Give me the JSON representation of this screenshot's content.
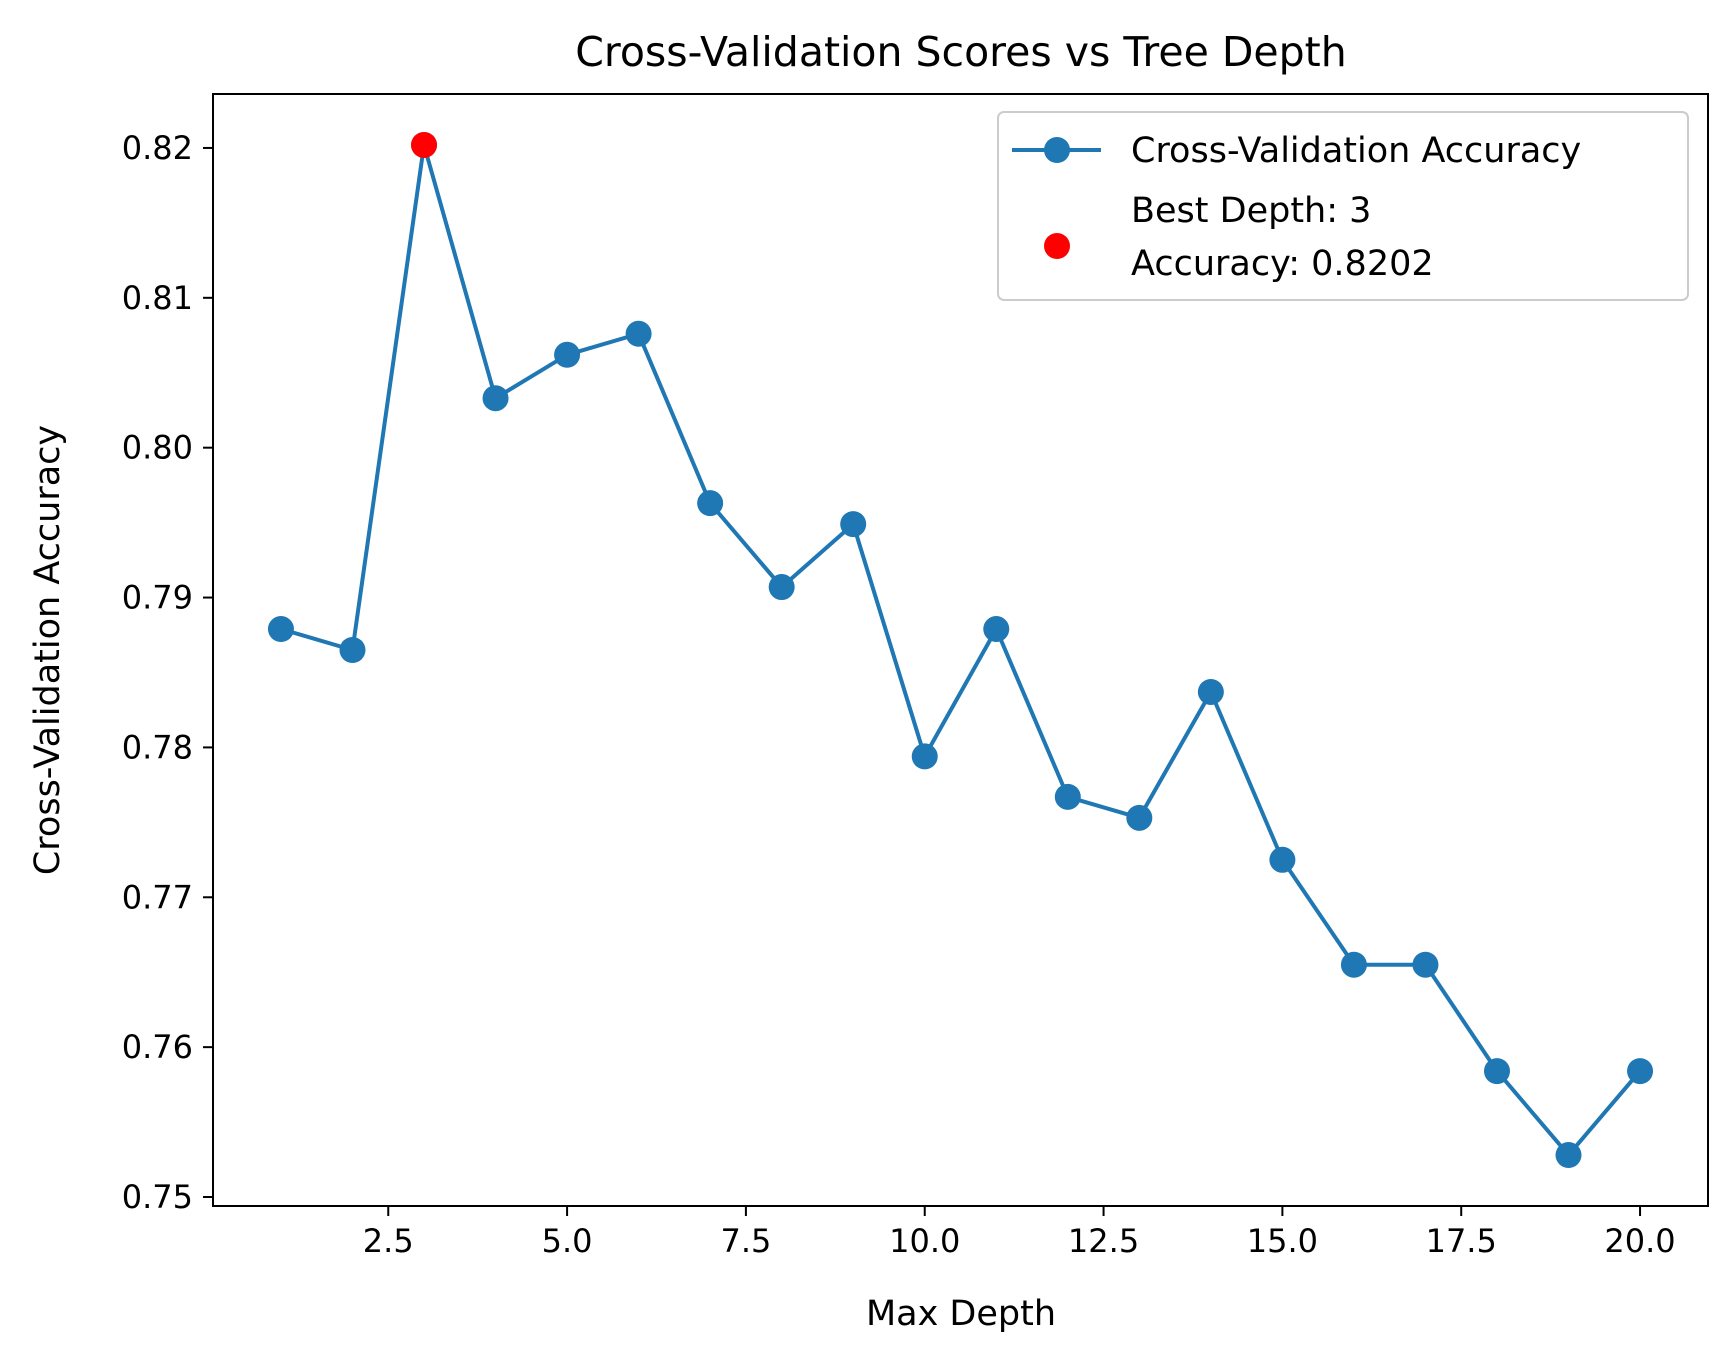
{
  "chart_data": {
    "type": "line",
    "title": "Cross-Validation Scores vs Tree Depth",
    "xlabel": "Max Depth",
    "ylabel": "Cross-Validation Accuracy",
    "xlim": [
      0.05,
      20.95
    ],
    "ylim": [
      0.7494,
      0.8236
    ],
    "xticks": [
      2.5,
      5.0,
      7.5,
      10.0,
      12.5,
      15.0,
      17.5,
      20.0
    ],
    "xtick_labels": [
      "2.5",
      "5.0",
      "7.5",
      "10.0",
      "12.5",
      "15.0",
      "17.5",
      "20.0"
    ],
    "yticks": [
      0.75,
      0.76,
      0.77,
      0.78,
      0.79,
      0.8,
      0.81,
      0.82
    ],
    "ytick_labels": [
      "0.75",
      "0.76",
      "0.77",
      "0.78",
      "0.79",
      "0.80",
      "0.81",
      "0.82"
    ],
    "grid": false,
    "legend_position": "top-right",
    "series": [
      {
        "name": "Cross-Validation Accuracy",
        "color": "#1f77b4",
        "x": [
          1,
          2,
          3,
          4,
          5,
          6,
          7,
          8,
          9,
          10,
          11,
          12,
          13,
          14,
          15,
          16,
          17,
          18,
          19,
          20
        ],
        "values": [
          0.7879,
          0.7865,
          0.8202,
          0.8033,
          0.8062,
          0.8076,
          0.7963,
          0.7907,
          0.7949,
          0.7794,
          0.7879,
          0.7767,
          0.7753,
          0.7837,
          0.7725,
          0.7655,
          0.7655,
          0.7584,
          0.7528,
          0.7584
        ]
      }
    ],
    "best_point": {
      "label_line1": "Best Depth: 3",
      "label_line2": "Accuracy: 0.8202",
      "x": 3,
      "y": 0.8202,
      "color": "#ff0000"
    }
  }
}
